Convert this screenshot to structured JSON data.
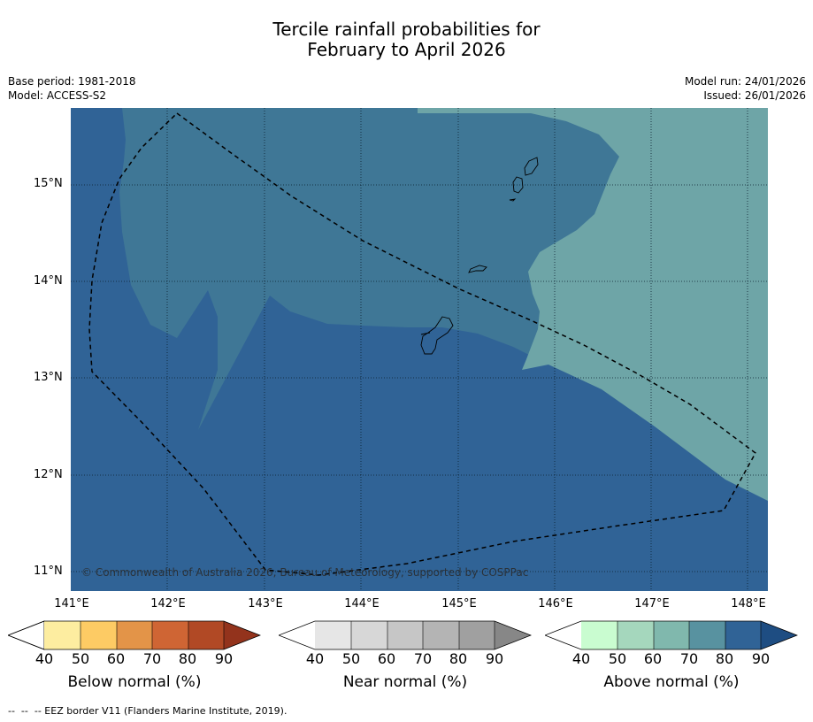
{
  "title_line1": "Tercile rainfall probabilities for",
  "title_line2": "February to April 2026",
  "meta_left": [
    "Base period: 1981-2018",
    "Model: ACCESS-S2"
  ],
  "meta_right": [
    "Model run: 24/01/2026",
    "Issued: 26/01/2026"
  ],
  "lat_labels": [
    "15°N",
    "14°N",
    "13°N",
    "12°N",
    "11°N"
  ],
  "lon_labels": [
    "141°E",
    "142°E",
    "143°E",
    "144°E",
    "145°E",
    "146°E",
    "147°E",
    "148°E"
  ],
  "credit": "© Commonwealth of Australia 2026, Bureau of Meteorology, supported by COSPPac",
  "colorbars": [
    {
      "label": "Below normal (%)",
      "ticks": [
        "40",
        "50",
        "60",
        "70",
        "80",
        "90"
      ],
      "colors": [
        "#ffffff",
        "#fdeda0",
        "#fdcb64",
        "#e39448",
        "#cf6534",
        "#b14925",
        "#93331c"
      ]
    },
    {
      "label": "Near normal (%)",
      "ticks": [
        "40",
        "50",
        "60",
        "70",
        "80",
        "90"
      ],
      "colors": [
        "#ffffff",
        "#e6e6e6",
        "#d7d7d7",
        "#c6c6c6",
        "#b4b4b4",
        "#a0a0a0",
        "#878787"
      ]
    },
    {
      "label": "Above normal (%)",
      "ticks": [
        "40",
        "50",
        "60",
        "70",
        "80",
        "90"
      ],
      "colors": [
        "#ffffff",
        "#c9fcd0",
        "#a5d7bd",
        "#80b8ad",
        "#5892a0",
        "#306396",
        "#1e4d82"
      ]
    }
  ],
  "map_colors": {
    "band_80_90": "#306396",
    "band_70_80": "#3f7796",
    "band_60_70": "#6ea5a7"
  },
  "footnote": "--  --  -- EEZ border V11 (Flanders Marine Institute, 2019)."
}
